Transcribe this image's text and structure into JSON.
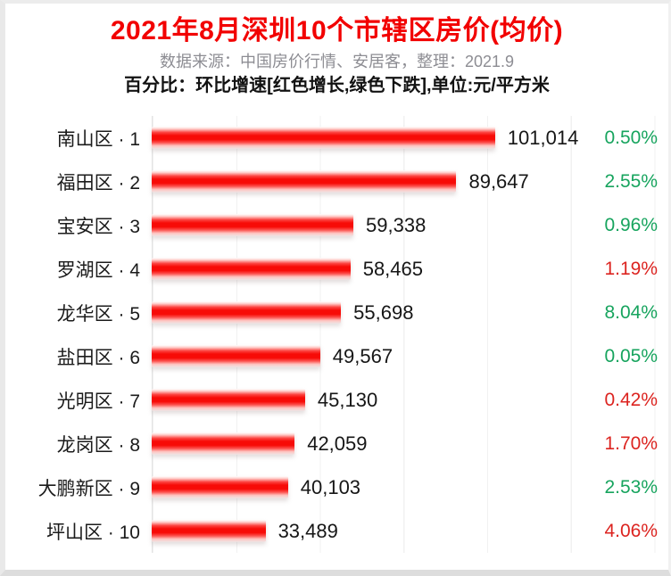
{
  "header": {
    "title": "2021年8月深圳10个市辖区房价(均价)",
    "subtitle": "数据来源：中国房价行情、安居客，整理：2021.9",
    "note": "百分比：环比增速[红色增长,绿色下跌],单位:元/平方米"
  },
  "colors": {
    "title_red": "#f20000",
    "bar_red": "#f70b07",
    "growth_red": "#dc2420",
    "decline_green": "#17a45e",
    "subtitle_gray": "#8d8d93",
    "grid_gray": "#f1f1f1",
    "axis_gray": "#e3e3e3"
  },
  "chart_data": {
    "type": "bar",
    "orientation": "horizontal",
    "title": "2021年8月深圳10个市辖区房价(均价)",
    "unit": "元/平方米",
    "xlim": [
      0,
      152000
    ],
    "gridline_interval": 25000,
    "grid": true,
    "legend_note": "红色增长, 绿色下跌",
    "categories": [
      "南山区 · 1",
      "福田区 · 2",
      "宝安区 · 3",
      "罗湖区 · 4",
      "龙华区 · 5",
      "盐田区 · 6",
      "光明区 · 7",
      "龙岗区 · 8",
      "大鹏新区 · 9",
      "坪山区 · 10"
    ],
    "values": [
      101014,
      89647,
      59338,
      58465,
      55698,
      49567,
      45130,
      42059,
      40103,
      33489
    ],
    "rows": [
      {
        "label": "南山区 · 1",
        "value": 101014,
        "value_label": "101,014",
        "change_percent": -0.5,
        "change_label": "0.50%",
        "direction": "down"
      },
      {
        "label": "福田区 · 2",
        "value": 89647,
        "value_label": "89,647",
        "change_percent": -2.55,
        "change_label": "2.55%",
        "direction": "down"
      },
      {
        "label": "宝安区 · 3",
        "value": 59338,
        "value_label": "59,338",
        "change_percent": -0.96,
        "change_label": "0.96%",
        "direction": "down"
      },
      {
        "label": "罗湖区 · 4",
        "value": 58465,
        "value_label": "58,465",
        "change_percent": 1.19,
        "change_label": "1.19%",
        "direction": "up"
      },
      {
        "label": "龙华区 · 5",
        "value": 55698,
        "value_label": "55,698",
        "change_percent": -8.04,
        "change_label": "8.04%",
        "direction": "down"
      },
      {
        "label": "盐田区 · 6",
        "value": 49567,
        "value_label": "49,567",
        "change_percent": -0.05,
        "change_label": "0.05%",
        "direction": "down"
      },
      {
        "label": "光明区 · 7",
        "value": 45130,
        "value_label": "45,130",
        "change_percent": 0.42,
        "change_label": "0.42%",
        "direction": "up"
      },
      {
        "label": "龙岗区 · 8",
        "value": 42059,
        "value_label": "42,059",
        "change_percent": 1.7,
        "change_label": "1.70%",
        "direction": "up"
      },
      {
        "label": "大鹏新区 · 9",
        "value": 40103,
        "value_label": "40,103",
        "change_percent": -2.53,
        "change_label": "2.53%",
        "direction": "down"
      },
      {
        "label": "坪山区 · 10",
        "value": 33489,
        "value_label": "33,489",
        "change_percent": 4.06,
        "change_label": "4.06%",
        "direction": "up"
      }
    ]
  }
}
